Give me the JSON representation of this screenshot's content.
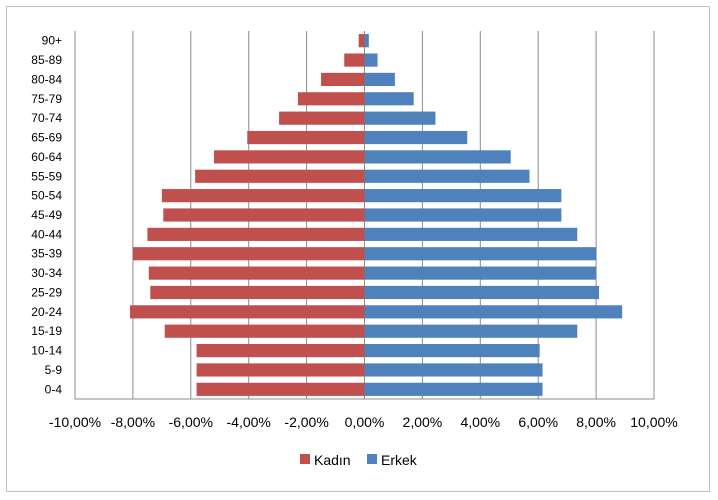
{
  "chart_data": {
    "type": "bar",
    "orientation": "horizontal",
    "chart_style": "population-pyramid",
    "categories": [
      "0-4",
      "5-9",
      "10-14",
      "15-19",
      "20-24",
      "25-29",
      "30-34",
      "35-39",
      "40-44",
      "45-49",
      "50-54",
      "55-59",
      "60-64",
      "65-69",
      "70-74",
      "75-79",
      "80-84",
      "85-89",
      "90+"
    ],
    "series": [
      {
        "name": "Kadın",
        "color": "#c0504d",
        "values": [
          -5.8,
          -5.8,
          -5.8,
          -6.9,
          -8.1,
          -7.4,
          -7.45,
          -8.0,
          -7.5,
          -6.95,
          -7.0,
          -5.85,
          -5.2,
          -4.05,
          -2.95,
          -2.3,
          -1.5,
          -0.7,
          -0.2
        ]
      },
      {
        "name": "Erkek",
        "color": "#4f81bd",
        "values": [
          6.15,
          6.15,
          6.05,
          7.35,
          8.9,
          8.1,
          8.0,
          8.0,
          7.35,
          6.8,
          6.8,
          5.7,
          5.05,
          3.55,
          2.45,
          1.7,
          1.05,
          0.45,
          0.15
        ]
      }
    ],
    "xlim": [
      -10,
      10
    ],
    "x_ticks": [
      "-10,00%",
      "-8,00%",
      "-6,00%",
      "-4,00%",
      "-2,00%",
      "0,00%",
      "2,00%",
      "4,00%",
      "6,00%",
      "8,00%",
      "10,00%"
    ],
    "grid": "vertical",
    "legend": "bottom-center",
    "title": "",
    "xlabel": "",
    "ylabel": ""
  }
}
